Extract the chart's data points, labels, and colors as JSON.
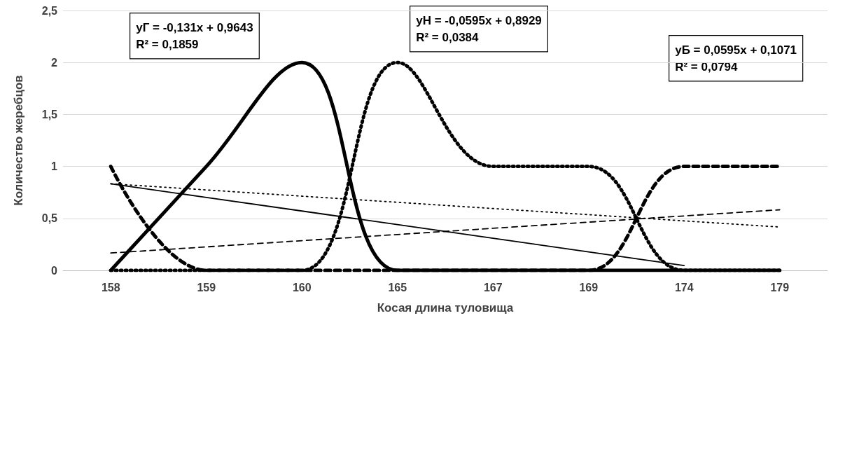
{
  "chart_data": {
    "type": "line",
    "xlabel": "Косая длина туловища",
    "ylabel": "Количество жеребцов",
    "categories": [
      "158",
      "159",
      "160",
      "165",
      "167",
      "169",
      "174",
      "179"
    ],
    "series": [
      {
        "color": "#000000",
        "line_style": "solid",
        "values": [
          0,
          1,
          2,
          0,
          0,
          0,
          0,
          0
        ]
      },
      {
        "color": "#000000",
        "line_style": "dashed",
        "values": [
          1,
          0,
          0,
          0,
          0,
          0,
          1,
          1
        ]
      },
      {
        "color": "#000000",
        "line_style": "dotted",
        "values": [
          0,
          0,
          0,
          2,
          1,
          1,
          0,
          0
        ]
      },
      {
        "color": "#000000",
        "line_style": "solid",
        "values": [
          0.833,
          0.702,
          0.571,
          0.44,
          0.309,
          0.178,
          0.047,
          null
        ]
      },
      {
        "color": "#000000",
        "line_style": "dashed",
        "values": [
          0.167,
          0.226,
          0.286,
          0.345,
          0.405,
          0.464,
          0.524,
          0.583
        ]
      },
      {
        "color": "#000000",
        "line_style": "dotted",
        "values": [
          0.833,
          0.774,
          0.714,
          0.655,
          0.595,
          0.536,
          0.476,
          0.417
        ]
      }
    ],
    "ylim": [
      0,
      2.5
    ],
    "yticks": [
      0,
      {
        "value": 0.5,
        "label": "0,5"
      },
      1,
      {
        "value": 1.5,
        "label": "1,5"
      },
      2,
      {
        "value": 2.5,
        "label": "2,5"
      }
    ],
    "grid": "y",
    "marker": "none",
    "annotations": [
      "yГ = -0,131x + 0,9643\nR² = 0,1859",
      "yН = -0,0595x + 0,8929\nR² = 0,0384",
      "yБ = 0,0595x + 0,1071\nR² = 0,0794"
    ]
  }
}
